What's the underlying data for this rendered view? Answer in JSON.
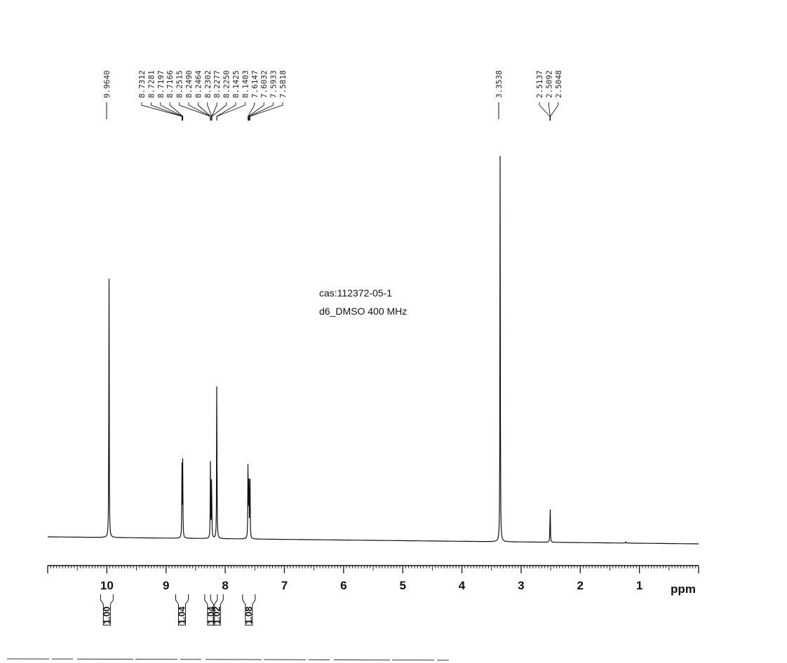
{
  "chart_data": {
    "type": "line",
    "xlabel": "ppm",
    "xlim": [
      11.0,
      0.0
    ],
    "x_ticks": [
      10,
      9,
      8,
      7,
      6,
      5,
      4,
      3,
      2,
      1
    ],
    "annotations": [
      "cas:112372-05-1",
      "d6_DMSO  400 MHz"
    ],
    "peak_labels": [
      {
        "group": "g1",
        "values": [
          "9.9640"
        ]
      },
      {
        "group": "g2",
        "values": [
          "8.7312",
          "8.7281",
          "8.7197",
          "8.7166",
          "8.2515",
          "8.2490",
          "8.2464",
          "8.2302",
          "8.2277",
          "8.2250",
          "8.1425",
          "8.1403",
          "7.6147",
          "7.6032",
          "7.5933",
          "7.5818"
        ]
      },
      {
        "group": "g3",
        "values": [
          "3.3538"
        ]
      },
      {
        "group": "g4",
        "values": [
          "2.5137",
          "2.5092",
          "2.5048"
        ]
      }
    ],
    "peaks": [
      {
        "ppm": 9.964,
        "height": 0.73
      },
      {
        "ppm": 8.731,
        "height": 0.19
      },
      {
        "ppm": 8.718,
        "height": 0.19
      },
      {
        "ppm": 8.25,
        "height": 0.19
      },
      {
        "ppm": 8.23,
        "height": 0.2
      },
      {
        "ppm": 8.142,
        "height": 0.44
      },
      {
        "ppm": 7.615,
        "height": 0.19
      },
      {
        "ppm": 7.6,
        "height": 0.18
      },
      {
        "ppm": 7.582,
        "height": 0.18
      },
      {
        "ppm": 3.354,
        "height": 1.0
      },
      {
        "ppm": 2.509,
        "height": 0.11
      },
      {
        "ppm": 1.23,
        "height": 0.005
      }
    ],
    "integrals": [
      {
        "ppm": 10.0,
        "value": "1.00"
      },
      {
        "ppm": 8.73,
        "value": "1.04"
      },
      {
        "ppm": 8.24,
        "value": "1.04"
      },
      {
        "ppm": 8.14,
        "value": "1.02"
      },
      {
        "ppm": 7.6,
        "value": "1.08"
      }
    ]
  }
}
